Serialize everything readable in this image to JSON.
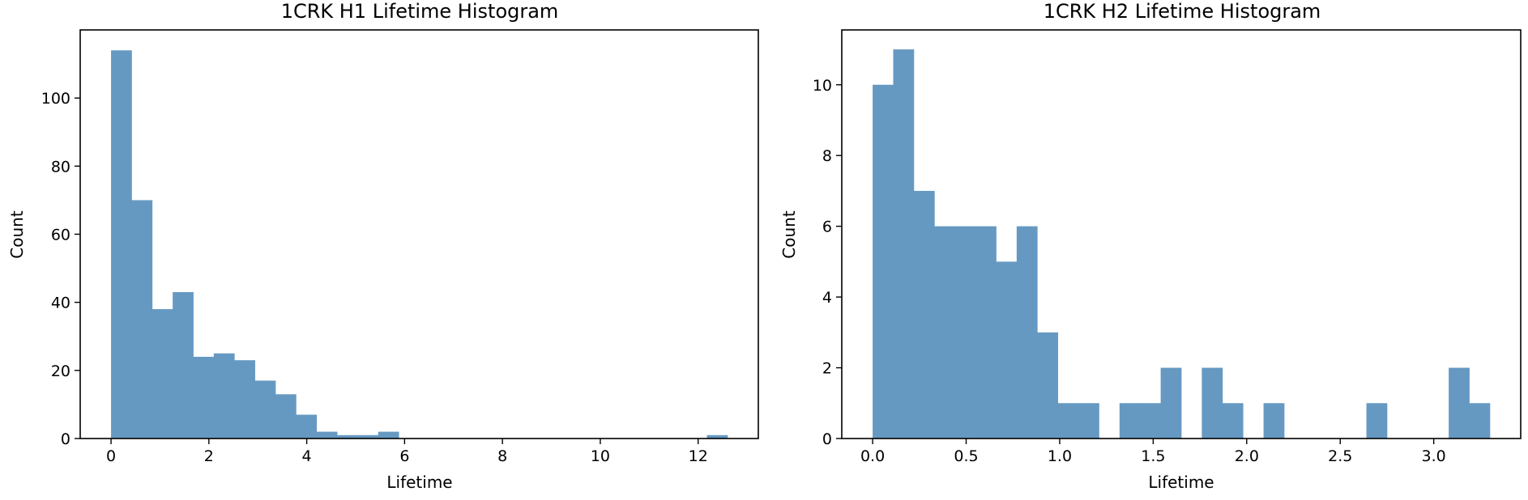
{
  "colors": {
    "bar_fill": "#6699c2",
    "frame": "#000000",
    "background": "#ffffff"
  },
  "chart_data": [
    {
      "type": "bar",
      "title": "1CRK H1 Lifetime Histogram",
      "xlabel": "Lifetime",
      "ylabel": "Count",
      "xlim": [
        -0.63,
        13.23
      ],
      "ylim": [
        0,
        120
      ],
      "xticks": [
        0,
        2,
        4,
        6,
        8,
        10,
        12
      ],
      "xtick_labels": [
        "0",
        "2",
        "4",
        "6",
        "8",
        "10",
        "12"
      ],
      "yticks": [
        0,
        20,
        40,
        60,
        80,
        100
      ],
      "ytick_labels": [
        "0",
        "20",
        "40",
        "60",
        "80",
        "100"
      ],
      "grid": false,
      "bin_start": 0,
      "bin_width": 0.42,
      "values": [
        114,
        70,
        38,
        43,
        24,
        25,
        23,
        17,
        13,
        7,
        2,
        1,
        1,
        2,
        0,
        0,
        0,
        0,
        0,
        0,
        0,
        0,
        0,
        0,
        0,
        0,
        0,
        0,
        0,
        1
      ]
    },
    {
      "type": "bar",
      "title": "1CRK H2 Lifetime Histogram",
      "xlabel": "Lifetime",
      "ylabel": "Count",
      "xlim": [
        -0.165,
        3.465
      ],
      "ylim": [
        0,
        11.55
      ],
      "xticks": [
        0,
        0.5,
        1,
        1.5,
        2,
        2.5,
        3
      ],
      "xtick_labels": [
        "0.0",
        "0.5",
        "1.0",
        "1.5",
        "2.0",
        "2.5",
        "3.0"
      ],
      "yticks": [
        0,
        2,
        4,
        6,
        8,
        10
      ],
      "ytick_labels": [
        "0",
        "2",
        "4",
        "6",
        "8",
        "10"
      ],
      "grid": false,
      "bin_start": 0,
      "bin_width": 0.11,
      "values": [
        10,
        11,
        7,
        6,
        6,
        6,
        5,
        6,
        3,
        1,
        1,
        0,
        1,
        1,
        2,
        0,
        2,
        1,
        0,
        1,
        0,
        0,
        0,
        0,
        1,
        0,
        0,
        0,
        2,
        1
      ]
    }
  ]
}
